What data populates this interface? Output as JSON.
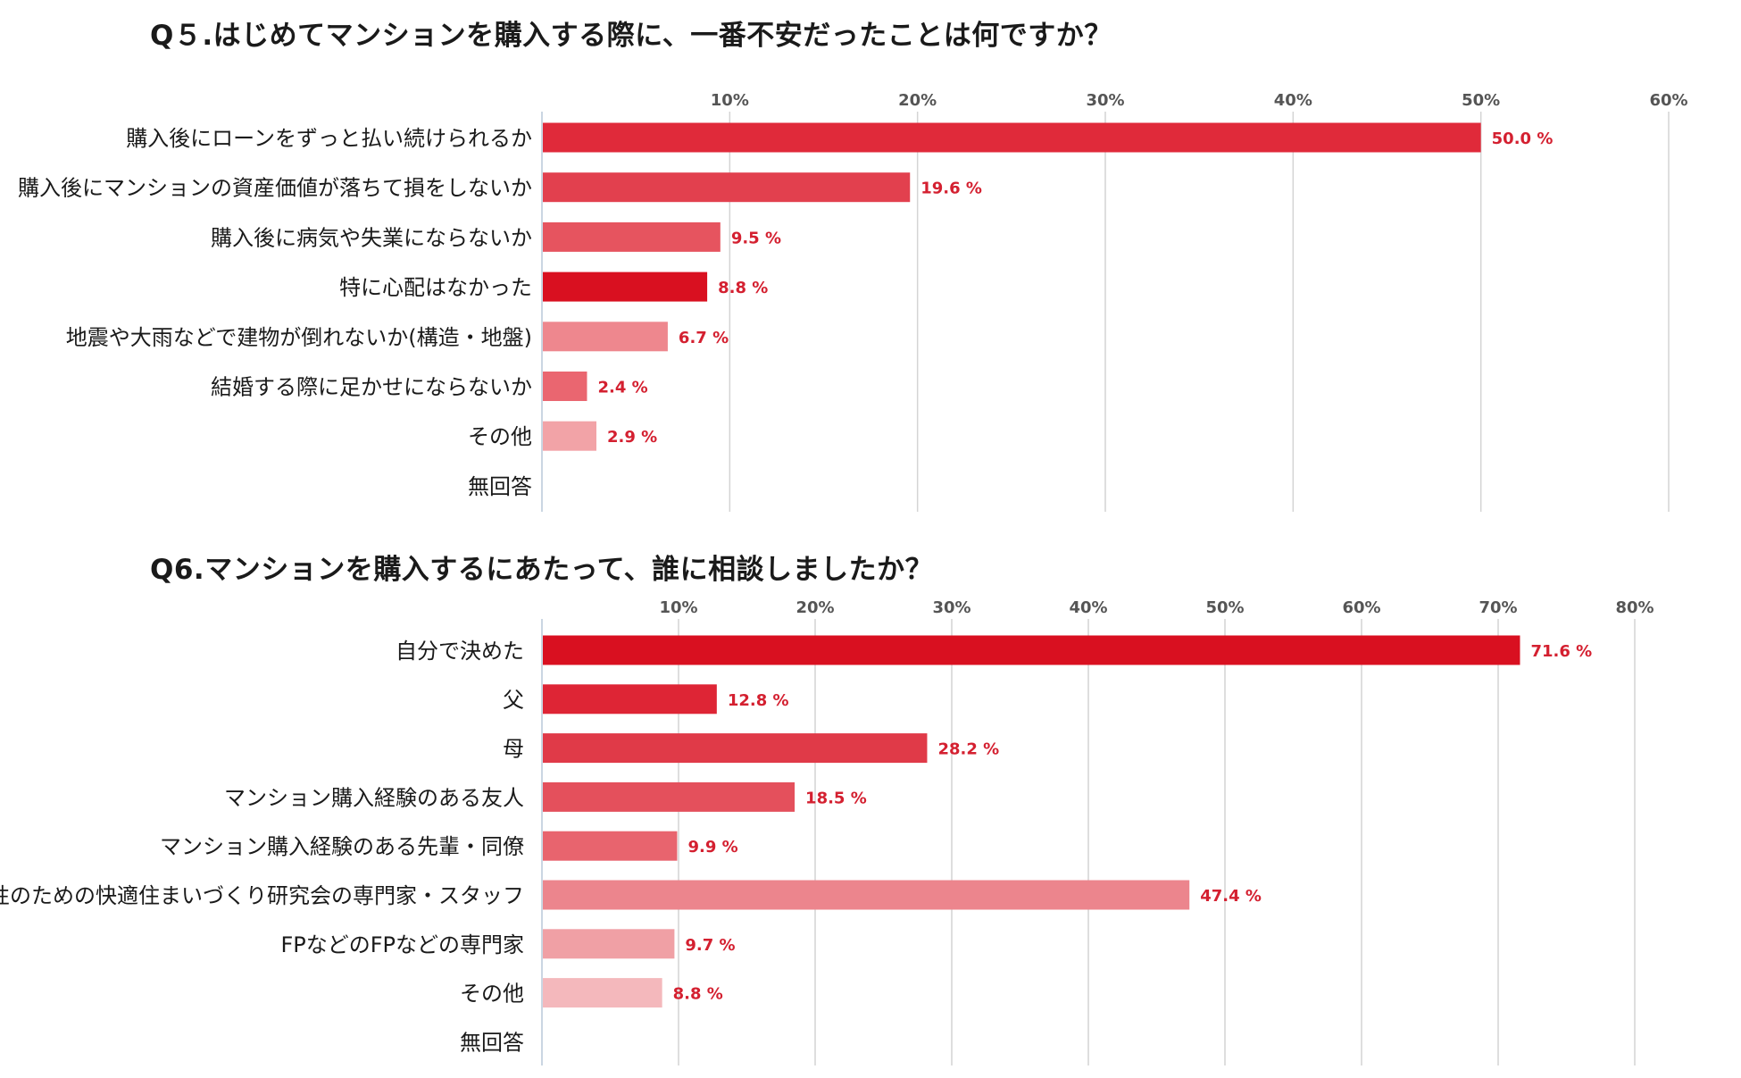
{
  "chart_data": [
    {
      "type": "bar",
      "orientation": "horizontal",
      "title": "Q５.はじめてマンションを購入する際に、一番不安だったことは何ですか？",
      "categories": [
        "購入後にローンをずっと払い続けられるか",
        "購入後にマンションの資産価値が落ちて損をしないか",
        "購入後に病気や失業にならないか",
        "特に心配はなかった",
        "地震や大雨などで建物が倒れないか(構造・地盤)",
        "結婚する際に足かせにならないか",
        "その他",
        "無回答"
      ],
      "values": [
        50.0,
        19.6,
        9.5,
        8.8,
        6.7,
        2.4,
        2.9,
        null
      ],
      "value_labels": [
        "50.0 %",
        "19.6 %",
        "9.5 %",
        "8.8 %",
        "6.7 %",
        "2.4 %",
        "2.9 %",
        ""
      ],
      "bar_colors": [
        "#e02a3a",
        "#e2404e",
        "#e6545f",
        "#d91020",
        "#ee878e",
        "#ea6670",
        "#f2a3a7",
        "#ffffff"
      ],
      "xlim": [
        0,
        60
      ],
      "ticks": [
        10,
        20,
        30,
        40,
        50,
        60
      ],
      "tick_labels": [
        "10%",
        "20%",
        "30%",
        "40%",
        "50%",
        "60%"
      ],
      "grid": true,
      "xlabel": "",
      "ylabel": ""
    },
    {
      "type": "bar",
      "orientation": "horizontal",
      "title": "Q6.マンションを購入するにあたって、誰に相談しましたか？",
      "categories": [
        "自分で決めた",
        "父",
        "母",
        "マンション購入経験のある友人",
        "マンション購入経験のある先輩・同僚",
        "女性のための快適住まいづくり研究会の専門家・スタッフ",
        "FPなどのFPなどの専門家",
        "その他",
        "無回答"
      ],
      "values": [
        71.6,
        12.8,
        28.2,
        18.5,
        9.9,
        47.4,
        9.7,
        8.8,
        null
      ],
      "value_labels": [
        "71.6 %",
        "12.8 %",
        "28.2 %",
        "18.5 %",
        "9.9 %",
        "47.4 %",
        "9.7 %",
        "8.8 %",
        ""
      ],
      "bar_colors": [
        "#d91020",
        "#de2535",
        "#e03a48",
        "#e4505c",
        "#e8646e",
        "#ec858d",
        "#f0a0a5",
        "#f4b8bc",
        "#ffffff"
      ],
      "xlim": [
        0,
        80
      ],
      "ticks": [
        10,
        20,
        30,
        40,
        50,
        60,
        70,
        80
      ],
      "tick_labels": [
        "10%",
        "20%",
        "30%",
        "40%",
        "50%",
        "60%",
        "70%",
        "80%"
      ],
      "grid": true,
      "xlabel": "",
      "ylabel": ""
    }
  ],
  "colors": {
    "grid": "#d4d4d4",
    "axis": "#b8c8d8",
    "label_text": "#1a1a1a",
    "value_text": "#d42030",
    "tick_text": "#555555"
  }
}
